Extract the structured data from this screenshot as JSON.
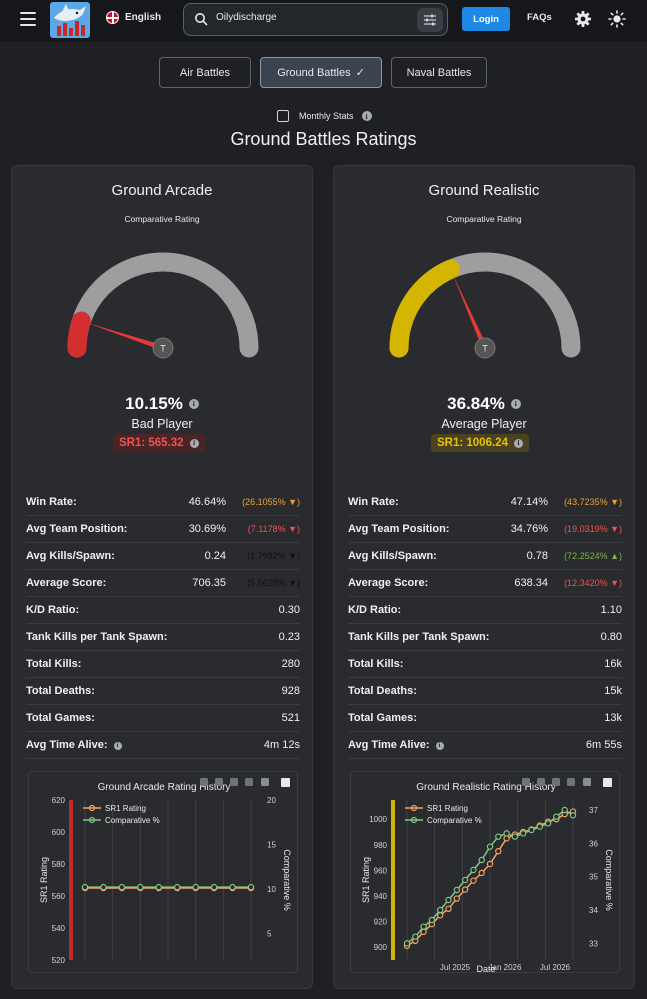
{
  "header": {
    "language": "English",
    "search_value": "Oilydischarge",
    "login_label": "Login",
    "faqs_label": "FAQs"
  },
  "tabs": [
    {
      "label": "Air Battles",
      "active": false
    },
    {
      "label": "Ground Battles",
      "active": true
    },
    {
      "label": "Naval Battles",
      "active": false
    }
  ],
  "monthly_label": "Monthly Stats",
  "page_title": "Ground Battles Ratings",
  "colors": {
    "accent": "#1e88e5",
    "bad": "#d32f2f",
    "average": "#d4b600",
    "gauge_track": "#9e9e9e"
  },
  "cards": [
    {
      "title": "Ground Arcade",
      "comp_label": "Comparative Rating",
      "gauge_fraction": 0.1015,
      "gauge_color": "#d32f2f",
      "pointer_label": "T",
      "percent": "10.15%",
      "verdict": "Bad Player",
      "sr1": "SR1: 565.32",
      "stats": [
        {
          "label": "Win Rate:",
          "value": "46.64%",
          "delta": "(26.1055% ▼)",
          "tone": "orange"
        },
        {
          "label": "Avg Team Position:",
          "value": "30.69%",
          "delta": "(7.1178% ▼)",
          "tone": "red"
        },
        {
          "label": "Avg Kills/Spawn:",
          "value": "0.24",
          "delta": "(1.7982% ▼)",
          "tone": "black"
        },
        {
          "label": "Average Score:",
          "value": "706.35",
          "delta": "(5.5628% ▼)",
          "tone": "black"
        },
        {
          "label": "K/D Ratio:",
          "value": "0.30"
        },
        {
          "label": "Tank Kills per Tank Spawn:",
          "value": "0.23"
        },
        {
          "label": "Total Kills:",
          "value": "280"
        },
        {
          "label": "Total Deaths:",
          "value": "928"
        },
        {
          "label": "Total Games:",
          "value": "521"
        },
        {
          "label": "Avg Time Alive:",
          "value": "4m 12s",
          "info": true
        }
      ],
      "chart_data": {
        "type": "line",
        "title": "Ground Arcade Rating History",
        "ylabel": "SR1 Rating",
        "y2label": "Comparative %",
        "xlabel": "",
        "ylim": [
          520,
          620
        ],
        "y2lim": [
          2,
          20
        ],
        "yticks": [
          "620",
          "600",
          "580",
          "560",
          "540",
          "520"
        ],
        "y2ticks": [
          "20",
          "15",
          "10",
          "5"
        ],
        "xticks": [],
        "legend": [
          "SR1 Rating",
          "Comparative %"
        ],
        "series": [
          {
            "name": "SR1 Rating",
            "values": [
              565,
              565,
              565,
              565,
              565,
              565,
              565,
              565,
              565,
              565
            ]
          },
          {
            "name": "Comparative %",
            "values": [
              10.2,
              10.2,
              10.2,
              10.2,
              10.2,
              10.2,
              10.2,
              10.2,
              10.2,
              10.2
            ]
          }
        ]
      }
    },
    {
      "title": "Ground Realistic",
      "comp_label": "Comparative Rating",
      "gauge_fraction": 0.3684,
      "gauge_color": "#d4b600",
      "pointer_label": "T",
      "percent": "36.84%",
      "verdict": "Average Player",
      "sr1": "SR1: 1006.24",
      "stats": [
        {
          "label": "Win Rate:",
          "value": "47.14%",
          "delta": "(43.7235% ▼)",
          "tone": "orange"
        },
        {
          "label": "Avg Team Position:",
          "value": "34.76%",
          "delta": "(19.0319% ▼)",
          "tone": "red"
        },
        {
          "label": "Avg Kills/Spawn:",
          "value": "0.78",
          "delta": "(72.2524% ▲)",
          "tone": "green"
        },
        {
          "label": "Average Score:",
          "value": "638.34",
          "delta": "(12.3420% ▼)",
          "tone": "red"
        },
        {
          "label": "K/D Ratio:",
          "value": "1.10"
        },
        {
          "label": "Tank Kills per Tank Spawn:",
          "value": "0.80"
        },
        {
          "label": "Total Kills:",
          "value": "16k"
        },
        {
          "label": "Total Deaths:",
          "value": "15k"
        },
        {
          "label": "Total Games:",
          "value": "13k"
        },
        {
          "label": "Avg Time Alive:",
          "value": "6m 55s",
          "info": true
        }
      ],
      "chart_data": {
        "type": "line",
        "title": "Ground Realistic Rating History",
        "ylabel": "SR1 Rating",
        "y2label": "Comparative %",
        "xlabel": "Date",
        "ylim": [
          890,
          1015
        ],
        "y2lim": [
          32.5,
          37.3
        ],
        "yticks": [
          "1000",
          "980",
          "960",
          "940",
          "920",
          "900"
        ],
        "y2ticks": [
          "37",
          "36",
          "35",
          "34",
          "33"
        ],
        "xticks": [
          "Jul 2025",
          "Jan 2026",
          "Jul 2026"
        ],
        "legend": [
          "SR1 Rating",
          "Comparative %"
        ],
        "series": [
          {
            "name": "SR1 Rating",
            "values": [
              901,
              905,
              912,
              918,
              925,
              930,
              938,
              945,
              952,
              958,
              965,
              975,
              985,
              988,
              990,
              992,
              995,
              998,
              1000,
              1004,
              1006
            ]
          },
          {
            "name": "Comparative %",
            "values": [
              33.0,
              33.2,
              33.5,
              33.7,
              34.0,
              34.3,
              34.6,
              34.9,
              35.2,
              35.5,
              35.9,
              36.2,
              36.3,
              36.2,
              36.3,
              36.4,
              36.5,
              36.6,
              36.8,
              37.0,
              36.84
            ]
          }
        ]
      }
    }
  ]
}
